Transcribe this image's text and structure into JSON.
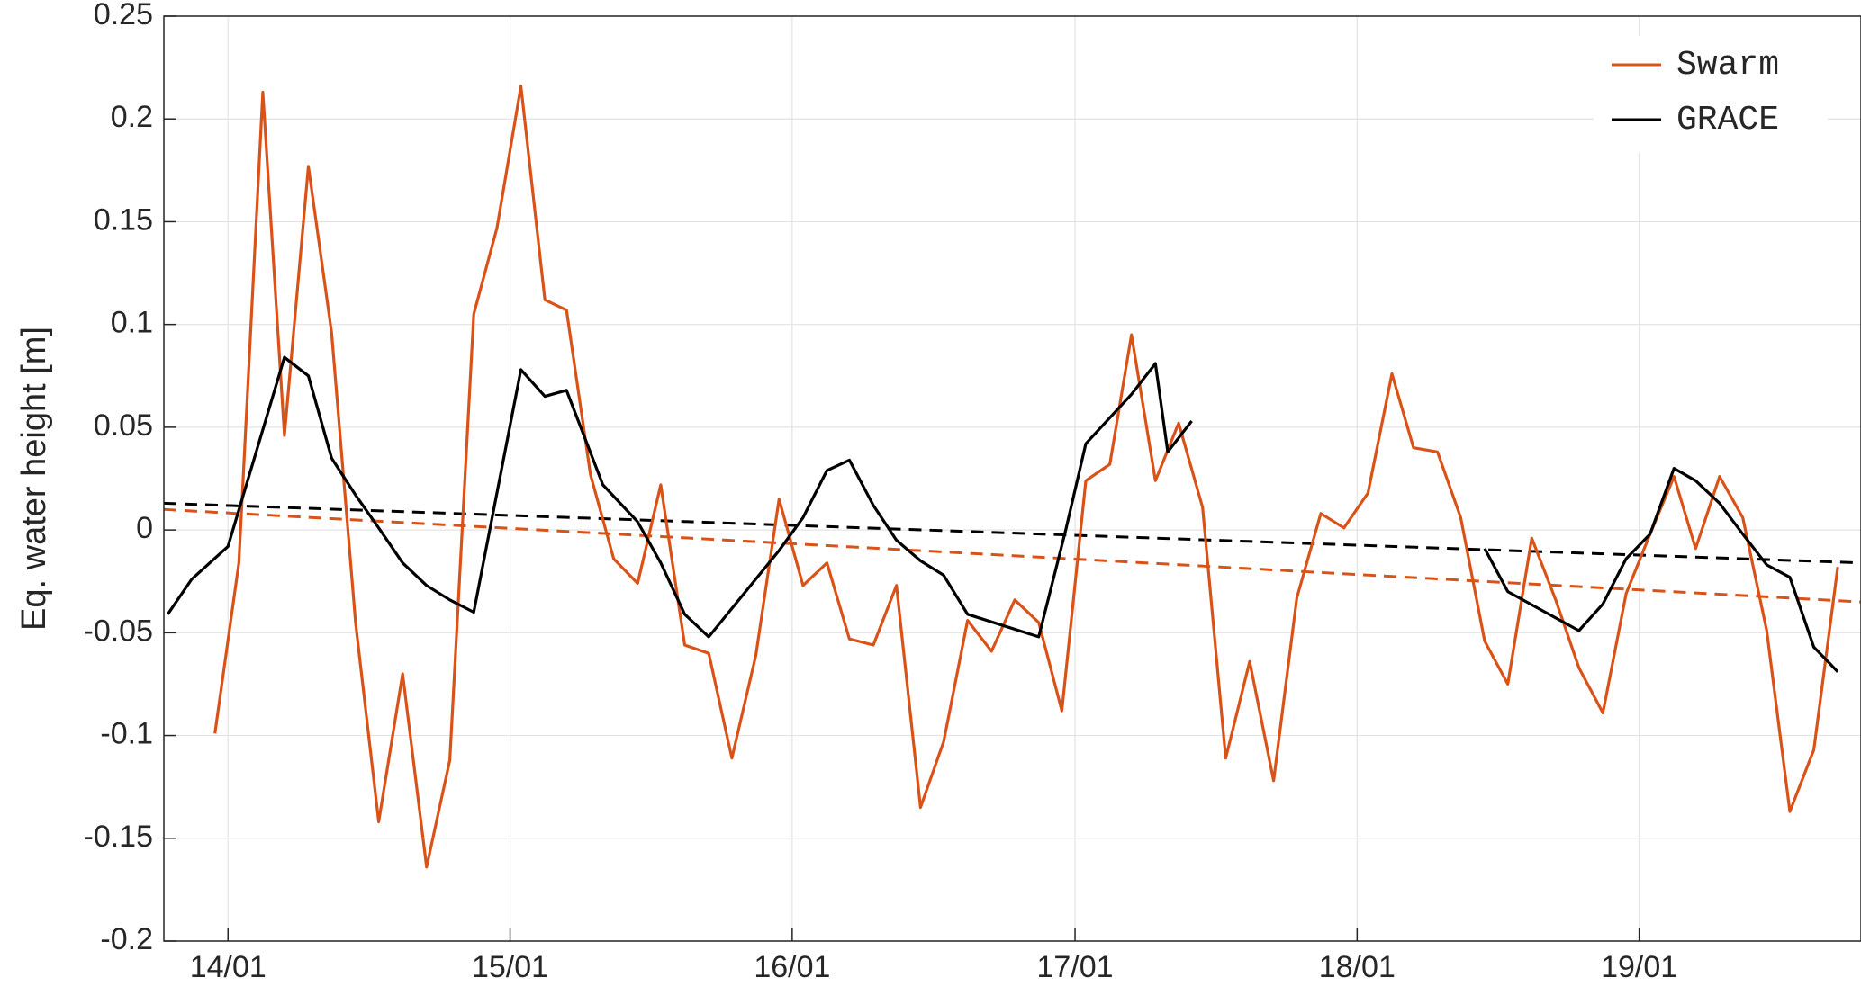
{
  "chart_data": {
    "type": "line",
    "title": "",
    "xlabel": "",
    "ylabel": "Eq. water height [m]",
    "xlim": [
      "2013-10-10",
      "2019-10-15"
    ],
    "ylim": [
      -0.2,
      0.25
    ],
    "xticks": [
      {
        "x": "2014-01-01",
        "label": "14/01"
      },
      {
        "x": "2015-01-01",
        "label": "15/01"
      },
      {
        "x": "2016-01-01",
        "label": "16/01"
      },
      {
        "x": "2017-01-01",
        "label": "17/01"
      },
      {
        "x": "2018-01-01",
        "label": "18/01"
      },
      {
        "x": "2019-01-01",
        "label": "19/01"
      }
    ],
    "yticks": [
      {
        "y": 0.25,
        "label": "0.25"
      },
      {
        "y": 0.2,
        "label": "0.2"
      },
      {
        "y": 0.15,
        "label": "0.15"
      },
      {
        "y": 0.1,
        "label": "0.1"
      },
      {
        "y": 0.05,
        "label": "0.05"
      },
      {
        "y": 0,
        "label": "0"
      },
      {
        "y": -0.05,
        "label": "-0.05"
      },
      {
        "y": -0.1,
        "label": "-0.1"
      },
      {
        "y": -0.15,
        "label": "-0.15"
      },
      {
        "y": -0.2,
        "label": "-0.2"
      }
    ],
    "grid": true,
    "legend_position": "top-right",
    "series": [
      {
        "name": "Swarm",
        "color": "#D95319",
        "style": "solid",
        "segments": [
          [
            {
              "x": "2013-12-15",
              "y": -0.099
            },
            {
              "x": "2014-01-15",
              "y": -0.016
            },
            {
              "x": "2014-02-15",
              "y": 0.213
            },
            {
              "x": "2014-03-15",
              "y": 0.046
            },
            {
              "x": "2014-04-15",
              "y": 0.177
            },
            {
              "x": "2014-05-15",
              "y": 0.096
            },
            {
              "x": "2014-06-15",
              "y": -0.045
            },
            {
              "x": "2014-07-15",
              "y": -0.142
            },
            {
              "x": "2014-08-15",
              "y": -0.07
            },
            {
              "x": "2014-09-15",
              "y": -0.164
            },
            {
              "x": "2014-10-15",
              "y": -0.112
            },
            {
              "x": "2014-11-15",
              "y": 0.105
            },
            {
              "x": "2014-12-15",
              "y": 0.147
            },
            {
              "x": "2015-01-15",
              "y": 0.216
            },
            {
              "x": "2015-02-15",
              "y": 0.112
            },
            {
              "x": "2015-03-15",
              "y": 0.107
            },
            {
              "x": "2015-04-15",
              "y": 0.027
            },
            {
              "x": "2015-05-15",
              "y": -0.014
            },
            {
              "x": "2015-06-15",
              "y": -0.026
            },
            {
              "x": "2015-07-15",
              "y": 0.022
            },
            {
              "x": "2015-08-15",
              "y": -0.056
            },
            {
              "x": "2015-09-15",
              "y": -0.06
            },
            {
              "x": "2015-10-15",
              "y": -0.111
            },
            {
              "x": "2015-11-15",
              "y": -0.061
            },
            {
              "x": "2015-12-15",
              "y": 0.015
            },
            {
              "x": "2016-01-15",
              "y": -0.027
            },
            {
              "x": "2016-02-15",
              "y": -0.016
            },
            {
              "x": "2016-03-15",
              "y": -0.053
            },
            {
              "x": "2016-04-15",
              "y": -0.056
            },
            {
              "x": "2016-05-15",
              "y": -0.027
            },
            {
              "x": "2016-06-15",
              "y": -0.135
            },
            {
              "x": "2016-07-15",
              "y": -0.103
            },
            {
              "x": "2016-08-15",
              "y": -0.044
            },
            {
              "x": "2016-09-15",
              "y": -0.059
            },
            {
              "x": "2016-10-15",
              "y": -0.034
            },
            {
              "x": "2016-11-15",
              "y": -0.045
            },
            {
              "x": "2016-12-15",
              "y": -0.088
            },
            {
              "x": "2017-01-15",
              "y": 0.024
            },
            {
              "x": "2017-02-15",
              "y": 0.032
            },
            {
              "x": "2017-03-15",
              "y": 0.095
            },
            {
              "x": "2017-04-15",
              "y": 0.024
            },
            {
              "x": "2017-05-15",
              "y": 0.052
            },
            {
              "x": "2017-06-15",
              "y": 0.011
            },
            {
              "x": "2017-07-15",
              "y": -0.111
            },
            {
              "x": "2017-08-15",
              "y": -0.064
            },
            {
              "x": "2017-09-15",
              "y": -0.122
            },
            {
              "x": "2017-10-15",
              "y": -0.033
            },
            {
              "x": "2017-11-15",
              "y": 0.008
            },
            {
              "x": "2017-12-15",
              "y": 0.001
            },
            {
              "x": "2018-01-15",
              "y": 0.018
            },
            {
              "x": "2018-02-15",
              "y": 0.076
            },
            {
              "x": "2018-03-15",
              "y": 0.04
            },
            {
              "x": "2018-04-15",
              "y": 0.038
            },
            {
              "x": "2018-05-15",
              "y": 0.006
            },
            {
              "x": "2018-06-15",
              "y": -0.054
            },
            {
              "x": "2018-07-15",
              "y": -0.075
            },
            {
              "x": "2018-08-15",
              "y": -0.004
            },
            {
              "x": "2018-09-15",
              "y": -0.034
            },
            {
              "x": "2018-10-15",
              "y": -0.067
            },
            {
              "x": "2018-11-15",
              "y": -0.089
            },
            {
              "x": "2018-12-15",
              "y": -0.031
            },
            {
              "x": "2019-01-15",
              "y": -0.002
            },
            {
              "x": "2019-02-15",
              "y": 0.026
            },
            {
              "x": "2019-03-15",
              "y": -0.009
            },
            {
              "x": "2019-04-15",
              "y": 0.026
            },
            {
              "x": "2019-05-15",
              "y": 0.006
            },
            {
              "x": "2019-06-15",
              "y": -0.049
            },
            {
              "x": "2019-07-15",
              "y": -0.137
            },
            {
              "x": "2019-08-15",
              "y": -0.107
            },
            {
              "x": "2019-09-15",
              "y": -0.018
            }
          ]
        ]
      },
      {
        "name": "GRACE",
        "color": "#000000",
        "style": "solid",
        "segments": [
          [
            {
              "x": "2013-10-15",
              "y": -0.041
            },
            {
              "x": "2013-11-15",
              "y": -0.024
            },
            {
              "x": "2014-01-01",
              "y": -0.008
            },
            {
              "x": "2014-03-15",
              "y": 0.084
            },
            {
              "x": "2014-04-15",
              "y": 0.075
            },
            {
              "x": "2014-05-15",
              "y": 0.035
            },
            {
              "x": "2014-06-15",
              "y": 0.017
            },
            {
              "x": "2014-07-15",
              "y": 0.001
            },
            {
              "x": "2014-08-15",
              "y": -0.016
            },
            {
              "x": "2014-09-15",
              "y": -0.027
            },
            {
              "x": "2014-10-15",
              "y": -0.034
            },
            {
              "x": "2014-11-15",
              "y": -0.04
            },
            {
              "x": "2015-01-15",
              "y": 0.078
            },
            {
              "x": "2015-02-15",
              "y": 0.065
            },
            {
              "x": "2015-03-15",
              "y": 0.068
            },
            {
              "x": "2015-05-01",
              "y": 0.022
            },
            {
              "x": "2015-06-15",
              "y": 0.004
            },
            {
              "x": "2015-07-15",
              "y": -0.016
            },
            {
              "x": "2015-08-15",
              "y": -0.041
            },
            {
              "x": "2015-09-15",
              "y": -0.052
            },
            {
              "x": "2015-12-15",
              "y": -0.01
            },
            {
              "x": "2016-01-15",
              "y": 0.006
            },
            {
              "x": "2016-02-15",
              "y": 0.029
            },
            {
              "x": "2016-03-15",
              "y": 0.034
            },
            {
              "x": "2016-04-15",
              "y": 0.012
            },
            {
              "x": "2016-05-15",
              "y": -0.005
            },
            {
              "x": "2016-06-15",
              "y": -0.015
            },
            {
              "x": "2016-07-15",
              "y": -0.022
            },
            {
              "x": "2016-08-15",
              "y": -0.041
            },
            {
              "x": "2016-11-15",
              "y": -0.052
            },
            {
              "x": "2016-12-20",
              "y": 0.0
            },
            {
              "x": "2017-01-15",
              "y": 0.042
            },
            {
              "x": "2017-03-15",
              "y": 0.066
            },
            {
              "x": "2017-04-15",
              "y": 0.081
            },
            {
              "x": "2017-05-01",
              "y": 0.038
            },
            {
              "x": "2017-06-01",
              "y": 0.053
            }
          ],
          [
            {
              "x": "2018-06-15",
              "y": -0.009
            },
            {
              "x": "2018-07-15",
              "y": -0.03
            },
            {
              "x": "2018-10-15",
              "y": -0.049
            },
            {
              "x": "2018-11-15",
              "y": -0.036
            },
            {
              "x": "2018-12-15",
              "y": -0.014
            },
            {
              "x": "2019-01-15",
              "y": -0.002
            },
            {
              "x": "2019-02-15",
              "y": 0.03
            },
            {
              "x": "2019-03-15",
              "y": 0.024
            },
            {
              "x": "2019-04-15",
              "y": 0.013
            },
            {
              "x": "2019-05-15",
              "y": -0.002
            },
            {
              "x": "2019-06-15",
              "y": -0.017
            },
            {
              "x": "2019-07-15",
              "y": -0.023
            },
            {
              "x": "2019-08-15",
              "y": -0.057
            },
            {
              "x": "2019-09-15",
              "y": -0.069
            }
          ]
        ]
      }
    ],
    "trend_lines": [
      {
        "series": "Swarm",
        "color": "#D95319",
        "style": "dashed",
        "points": [
          {
            "x": "2013-10-10",
            "y": 0.01
          },
          {
            "x": "2019-10-15",
            "y": -0.035
          }
        ]
      },
      {
        "series": "GRACE",
        "color": "#000000",
        "style": "dashed",
        "points": [
          {
            "x": "2013-10-10",
            "y": 0.013
          },
          {
            "x": "2019-10-15",
            "y": -0.016
          }
        ]
      }
    ]
  }
}
